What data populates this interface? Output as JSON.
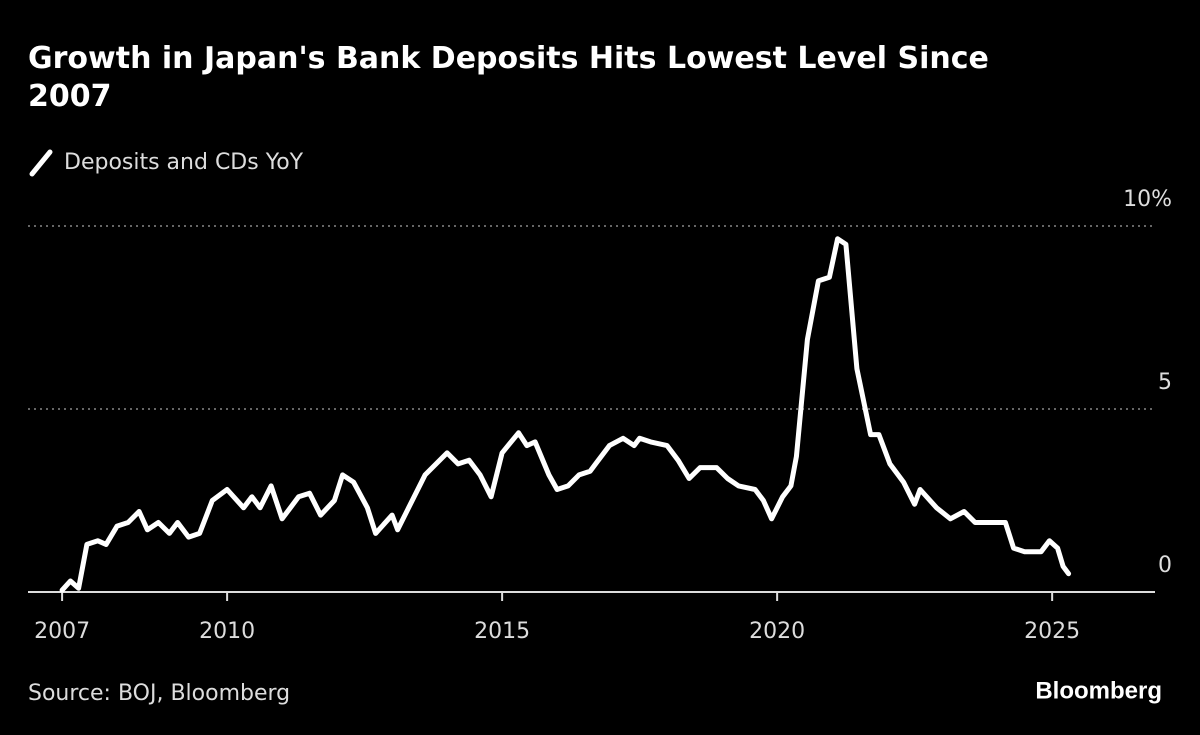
{
  "chart_data": {
    "type": "line",
    "title": "Growth in Japan's Bank Deposits Hits Lowest Level Since 2007",
    "source": "Source: BOJ, Bloomberg",
    "brand": "Bloomberg",
    "x": [
      2007.0,
      2007.15,
      2007.3,
      2007.45,
      2007.65,
      2007.8,
      2008.0,
      2008.2,
      2008.4,
      2008.55,
      2008.75,
      2008.95,
      2009.1,
      2009.3,
      2009.5,
      2009.73,
      2010.0,
      2010.3,
      2010.45,
      2010.6,
      2010.8,
      2011.0,
      2011.3,
      2011.5,
      2011.7,
      2011.95,
      2012.1,
      2012.3,
      2012.55,
      2012.7,
      2013.0,
      2013.1,
      2013.3,
      2013.6,
      2013.8,
      2014.0,
      2014.2,
      2014.4,
      2014.6,
      2014.8,
      2015.0,
      2015.3,
      2015.45,
      2015.6,
      2015.85,
      2016.0,
      2016.2,
      2016.4,
      2016.6,
      2016.7,
      2016.95,
      2017.2,
      2017.4,
      2017.5,
      2017.7,
      2018.0,
      2018.2,
      2018.4,
      2018.6,
      2018.9,
      2019.1,
      2019.3,
      2019.6,
      2019.75,
      2019.9,
      2020.1,
      2020.25,
      2020.35,
      2020.55,
      2020.75,
      2020.95,
      2021.1,
      2021.25,
      2021.45,
      2021.7,
      2021.85,
      2022.05,
      2022.3,
      2022.5,
      2022.6,
      2022.9,
      2023.15,
      2023.4,
      2023.6,
      2023.85,
      2024.15,
      2024.3,
      2024.5,
      2024.8,
      2024.95,
      2025.1,
      2025.2,
      2025.3
    ],
    "series": [
      {
        "name": "Deposits and CDs YoY",
        "color": "#ffffff",
        "values": [
          0.05,
          0.3,
          0.1,
          1.3,
          1.4,
          1.3,
          1.8,
          1.9,
          2.2,
          1.7,
          1.9,
          1.6,
          1.9,
          1.5,
          1.6,
          2.5,
          2.8,
          2.3,
          2.6,
          2.3,
          2.9,
          2.0,
          2.6,
          2.7,
          2.1,
          2.5,
          3.2,
          3.0,
          2.3,
          1.6,
          2.1,
          1.7,
          2.3,
          3.2,
          3.5,
          3.8,
          3.5,
          3.6,
          3.2,
          2.6,
          3.8,
          4.35,
          4.0,
          4.1,
          3.2,
          2.8,
          2.9,
          3.2,
          3.3,
          3.5,
          4.0,
          4.2,
          4.0,
          4.2,
          4.1,
          4.0,
          3.6,
          3.1,
          3.4,
          3.4,
          3.1,
          2.9,
          2.8,
          2.5,
          2.0,
          2.6,
          2.9,
          3.7,
          6.9,
          8.5,
          8.6,
          9.65,
          9.5,
          6.1,
          4.3,
          4.3,
          3.5,
          3.0,
          2.4,
          2.8,
          2.3,
          2.0,
          2.2,
          1.9,
          1.9,
          1.9,
          1.2,
          1.1,
          1.1,
          1.4,
          1.2,
          0.7,
          0.5
        ]
      }
    ],
    "xlim": [
      2006.38,
      2026.87
    ],
    "xticks": [
      2007,
      2010,
      2015,
      2020,
      2025
    ],
    "ylim": [
      0,
      10
    ],
    "yticks": [
      0,
      5,
      {
        "value": 10,
        "label": "10%"
      }
    ],
    "grid": true
  }
}
